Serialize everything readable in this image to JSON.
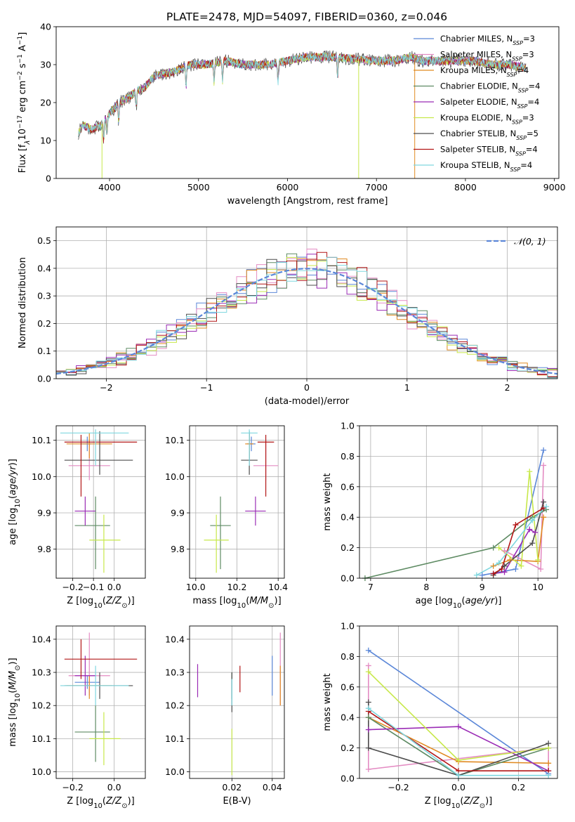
{
  "figure": {
    "title": "PLATE=2478, MJD=54097, FIBERID=0360, z=0.046"
  },
  "series_styles": [
    {
      "name": "Chabrier MILES",
      "legend_suffix": "3",
      "color": "#5b87d8"
    },
    {
      "name": "Salpeter MILES",
      "legend_suffix": "3",
      "color": "#e48cc3"
    },
    {
      "name": "Kroupa MILES",
      "legend_suffix": "4",
      "color": "#e08a22"
    },
    {
      "name": "Chabrier ELODIE",
      "legend_suffix": "4",
      "color": "#5e8b63"
    },
    {
      "name": "Salpeter ELODIE",
      "legend_suffix": "4",
      "color": "#9a2bb5"
    },
    {
      "name": "Kroupa ELODIE",
      "legend_suffix": "3",
      "color": "#c7e84a"
    },
    {
      "name": "Chabrier STELIB",
      "legend_suffix": "5",
      "color": "#4d4d4d"
    },
    {
      "name": "Salpeter STELIB",
      "legend_suffix": "4",
      "color": "#b21616"
    },
    {
      "name": "Kroupa STELIB",
      "legend_suffix": "4",
      "color": "#7fd7df"
    }
  ],
  "chart_data": [
    {
      "id": "spectrum",
      "type": "line",
      "title": "PLATE=2478, MJD=54097, FIBERID=0360, z=0.046",
      "xlabel": "wavelength [Angstrom, rest frame]",
      "ylabel": "Flux [f_λ10^{-17} erg cm^{-2} s^{-1} A^{-1}]",
      "xlim": [
        3400,
        9050
      ],
      "ylim": [
        0,
        40
      ],
      "xticks": [
        4000,
        5000,
        6000,
        7000,
        8000,
        9000
      ],
      "yticks": [
        0,
        10,
        20,
        30,
        40
      ],
      "legend_position": "right",
      "x_range": [
        3650,
        8680
      ],
      "continuum": {
        "x": [
          3650,
          3700,
          3800,
          3900,
          4000,
          4100,
          4200,
          4300,
          4400,
          4500,
          4700,
          4900,
          5100,
          5300,
          5500,
          5800,
          6000,
          6200,
          6500,
          7000,
          7200,
          7400,
          7500,
          7700,
          7900,
          8100,
          8300,
          8500,
          8680
        ],
        "y": [
          12,
          14,
          13,
          14,
          17,
          20,
          21,
          23,
          24,
          27,
          28,
          30,
          30,
          31,
          30,
          30,
          31,
          32,
          32,
          31,
          31,
          32,
          31,
          31,
          31,
          31,
          30,
          30,
          29
        ]
      },
      "absorption_lines_x": [
        3934,
        3969,
        4102,
        4300,
        4861,
        5175,
        5270,
        5893,
        6563
      ]
    },
    {
      "id": "residuals",
      "type": "line",
      "xlabel": "(data-model)/error",
      "ylabel": "Normed distribution",
      "xlim": [
        -2.5,
        2.5
      ],
      "ylim": [
        0,
        0.55
      ],
      "xticks": [
        -2,
        -1,
        0,
        1,
        2
      ],
      "yticks": [
        0.0,
        0.1,
        0.2,
        0.3,
        0.4,
        0.5
      ],
      "grid": true,
      "legend_position": "top-right",
      "gaussian_label": "𝒩(0, 1)",
      "gaussian_color": "#5b87d8",
      "bin_width": 0.1,
      "bin_start": -2.5
    },
    {
      "id": "age-vs-Z",
      "type": "scatter",
      "xlabel": "Z [log10(Z/Z⊙)]",
      "ylabel": "age [log10(age/yr)]",
      "xlim": [
        -0.28,
        0.15
      ],
      "ylim": [
        9.72,
        10.14
      ],
      "xticks": [
        -0.2,
        -0.1,
        0.0
      ],
      "yticks": [
        9.8,
        9.9,
        10.0,
        10.1
      ],
      "grid": true,
      "series": [
        {
          "x": -0.13,
          "y": 10.09,
          "xerr": [
            0.03,
            0.02
          ],
          "yerr": [
            0.02,
            0.02
          ]
        },
        {
          "x": -0.12,
          "y": 10.03,
          "xerr": [
            0.1,
            0.1
          ],
          "yerr": [
            0.04,
            0.07
          ]
        },
        {
          "x": -0.12,
          "y": 10.09,
          "xerr": [
            0.11,
            0.11
          ],
          "yerr": [
            0.04,
            0.03
          ]
        },
        {
          "x": -0.09,
          "y": 9.865,
          "xerr": [
            0.1,
            0.07
          ],
          "yerr": [
            0.12,
            0.08
          ]
        },
        {
          "x": -0.14,
          "y": 9.905,
          "xerr": [
            0.05,
            0.05
          ],
          "yerr": [
            0.04,
            0.04
          ]
        },
        {
          "x": -0.05,
          "y": 9.825,
          "xerr": [
            0.07,
            0.08
          ],
          "yerr": [
            0.09,
            0.07
          ]
        },
        {
          "x": -0.07,
          "y": 10.045,
          "xerr": [
            0.17,
            0.16
          ],
          "yerr": [
            0.04,
            0.08
          ]
        },
        {
          "x": -0.16,
          "y": 10.095,
          "xerr": [
            0.08,
            0.27
          ],
          "yerr": [
            0.15,
            0.02
          ]
        },
        {
          "x": -0.09,
          "y": 10.12,
          "xerr": [
            0.17,
            0.16
          ],
          "yerr": [
            0.09,
            0.01
          ]
        }
      ]
    },
    {
      "id": "age-vs-mass",
      "type": "scatter",
      "xlabel": "mass [log10(M/M⊙)]",
      "ylabel": "",
      "xlim": [
        9.97,
        10.43
      ],
      "ylim": [
        9.72,
        10.14
      ],
      "xticks": [
        10.0,
        10.2,
        10.4
      ],
      "yticks": [
        9.8,
        9.9,
        10.0,
        10.1
      ],
      "grid": true,
      "series": [
        {
          "x": 10.27,
          "y": 10.09,
          "xerr": [
            0.02,
            0.02
          ],
          "yerr": [
            0.02,
            0.02
          ]
        },
        {
          "x": 10.34,
          "y": 10.03,
          "xerr": [
            0.06,
            0.06
          ],
          "yerr": [
            0.04,
            0.07
          ]
        },
        {
          "x": 10.26,
          "y": 10.09,
          "xerr": [
            0.02,
            0.02
          ],
          "yerr": [
            0.04,
            0.03
          ]
        },
        {
          "x": 10.12,
          "y": 9.865,
          "xerr": [
            0.05,
            0.05
          ],
          "yerr": [
            0.12,
            0.08
          ]
        },
        {
          "x": 10.29,
          "y": 9.905,
          "xerr": [
            0.05,
            0.05
          ],
          "yerr": [
            0.04,
            0.04
          ]
        },
        {
          "x": 10.1,
          "y": 9.825,
          "xerr": [
            0.06,
            0.06
          ],
          "yerr": [
            0.09,
            0.07
          ]
        },
        {
          "x": 10.26,
          "y": 10.045,
          "xerr": [
            0.04,
            0.04
          ],
          "yerr": [
            0.04,
            0.08
          ]
        },
        {
          "x": 10.34,
          "y": 10.095,
          "xerr": [
            0.04,
            0.04
          ],
          "yerr": [
            0.15,
            0.02
          ]
        },
        {
          "x": 10.26,
          "y": 10.12,
          "xerr": [
            0.04,
            0.04
          ],
          "yerr": [
            0.09,
            0.01
          ]
        }
      ]
    },
    {
      "id": "mass-vs-Z",
      "type": "scatter",
      "xlabel": "Z [log10(Z/Z⊙)]",
      "ylabel": "mass [log10(M/M⊙)]",
      "xlim": [
        -0.28,
        0.15
      ],
      "ylim": [
        9.98,
        10.44
      ],
      "xticks": [
        -0.2,
        0.0
      ],
      "yticks": [
        10.0,
        10.1,
        10.2,
        10.3,
        10.4
      ],
      "grid": true,
      "series": [
        {
          "x": -0.13,
          "y": 10.27,
          "xerr": [
            0.06,
            0.06
          ],
          "yerr": [
            0.02,
            0.02
          ]
        },
        {
          "x": -0.12,
          "y": 10.29,
          "xerr": [
            0.1,
            0.1
          ],
          "yerr": [
            0.06,
            0.13
          ]
        },
        {
          "x": -0.12,
          "y": 10.26,
          "xerr": [
            0.11,
            0.11
          ],
          "yerr": [
            0.04,
            0.03
          ]
        },
        {
          "x": -0.09,
          "y": 10.12,
          "xerr": [
            0.1,
            0.07
          ],
          "yerr": [
            0.09,
            0.08
          ]
        },
        {
          "x": -0.14,
          "y": 10.29,
          "xerr": [
            0.05,
            0.05
          ],
          "yerr": [
            0.06,
            0.06
          ]
        },
        {
          "x": -0.05,
          "y": 10.1,
          "xerr": [
            0.07,
            0.08
          ],
          "yerr": [
            0.08,
            0.08
          ]
        },
        {
          "x": -0.07,
          "y": 10.26,
          "xerr": [
            0.17,
            0.16
          ],
          "yerr": [
            0.04,
            0.04
          ]
        },
        {
          "x": -0.16,
          "y": 10.34,
          "xerr": [
            0.08,
            0.27
          ],
          "yerr": [
            0.06,
            0.06
          ]
        },
        {
          "x": -0.09,
          "y": 10.26,
          "xerr": [
            0.17,
            0.16
          ],
          "yerr": [
            0.06,
            0.06
          ]
        }
      ]
    },
    {
      "id": "mass-vs-EBV",
      "type": "scatter",
      "xlabel": "E(B-V)",
      "ylabel": "",
      "xlim": [
        -0.001,
        0.046
      ],
      "ylim": [
        9.98,
        10.44
      ],
      "xticks": [
        0.02,
        0.04
      ],
      "yticks": [
        10.0,
        10.1,
        10.2,
        10.3,
        10.4
      ],
      "grid": true,
      "series": [
        {
          "x": 0.04,
          "y": 10.29,
          "yerr": [
            0.06,
            0.06
          ]
        },
        {
          "x": 0.044,
          "y": 10.31,
          "yerr": [
            0.11,
            0.11
          ]
        },
        {
          "x": 0.044,
          "y": 10.26,
          "yerr": [
            0.06,
            0.06
          ]
        },
        {
          "x": 0.02,
          "y": 10.26,
          "yerr": [
            0.04,
            0.04
          ]
        },
        {
          "x": 0.003,
          "y": 10.275,
          "yerr": [
            0.05,
            0.05
          ]
        },
        {
          "x": 0.02,
          "y": 10.06,
          "yerr": [
            0.07,
            0.07
          ]
        },
        {
          "x": 0.02,
          "y": 10.24,
          "yerr": [
            0.06,
            0.06
          ]
        },
        {
          "x": 0.024,
          "y": 10.28,
          "yerr": [
            0.04,
            0.04
          ]
        },
        {
          "x": 0.02,
          "y": 10.24,
          "yerr": [
            0.04,
            0.04
          ]
        }
      ]
    },
    {
      "id": "weight-vs-age",
      "type": "line",
      "xlabel": "age [log10(age/yr)]",
      "ylabel": "mass weight",
      "xlim": [
        6.8,
        10.35
      ],
      "ylim": [
        0,
        1.0
      ],
      "xticks": [
        7,
        8,
        9,
        10
      ],
      "yticks": [
        0.0,
        0.2,
        0.4,
        0.6,
        0.8,
        1.0
      ],
      "grid": true,
      "series": [
        {
          "x": [
            9.0,
            9.6,
            10.1
          ],
          "y": [
            0.02,
            0.06,
            0.84
          ]
        },
        {
          "x": [
            9.4,
            10.05,
            10.1
          ],
          "y": [
            0.18,
            0.06,
            0.74
          ]
        },
        {
          "x": [
            9.2,
            9.5,
            10.0,
            10.1
          ],
          "y": [
            0.08,
            0.12,
            0.11,
            0.4
          ]
        },
        {
          "x": [
            6.9,
            9.2,
            9.9,
            10.15
          ],
          "y": [
            0.0,
            0.2,
            0.4,
            0.45
          ]
        },
        {
          "x": [
            9.2,
            9.4,
            9.85,
            9.95
          ],
          "y": [
            0.03,
            0.04,
            0.32,
            0.3
          ]
        },
        {
          "x": [
            9.3,
            9.7,
            9.85,
            10.0
          ],
          "y": [
            0.2,
            0.08,
            0.7,
            0.12
          ]
        },
        {
          "x": [
            9.2,
            9.4,
            9.9,
            10.1
          ],
          "y": [
            0.02,
            0.08,
            0.23,
            0.5
          ]
        },
        {
          "x": [
            9.2,
            9.35,
            9.6,
            10.1
          ],
          "y": [
            0.03,
            0.06,
            0.35,
            0.46
          ]
        },
        {
          "x": [
            8.9,
            9.3,
            9.9,
            10.15
          ],
          "y": [
            0.02,
            0.1,
            0.38,
            0.47
          ]
        }
      ]
    },
    {
      "id": "weight-vs-Z",
      "type": "line",
      "xlabel": "Z [log10(Z/Z⊙)]",
      "ylabel": "mass weight",
      "xlim": [
        -0.33,
        0.33
      ],
      "ylim": [
        0,
        1.0
      ],
      "xticks": [
        -0.2,
        0.0,
        0.2
      ],
      "yticks": [
        0.0,
        0.2,
        0.4,
        0.6,
        0.8,
        1.0
      ],
      "grid": true,
      "series": [
        {
          "x": [
            -0.3,
            0.3
          ],
          "y": [
            0.84,
            0.03
          ]
        },
        {
          "x": [
            -0.3,
            -0.3,
            0.3,
            0.3
          ],
          "y": [
            0.74,
            0.06,
            0.2,
            0.05
          ]
        },
        {
          "x": [
            -0.3,
            0.0,
            0.3
          ],
          "y": [
            0.4,
            0.11,
            0.1
          ]
        },
        {
          "x": [
            -0.3,
            0.0,
            0.3
          ],
          "y": [
            0.4,
            0.02,
            0.2
          ]
        },
        {
          "x": [
            -0.3,
            0.0,
            0.3
          ],
          "y": [
            0.32,
            0.34,
            0.05
          ]
        },
        {
          "x": [
            -0.3,
            0.0,
            0.3
          ],
          "y": [
            0.7,
            0.12,
            0.2
          ]
        },
        {
          "x": [
            -0.3,
            -0.3,
            0.0,
            0.3
          ],
          "y": [
            0.5,
            0.2,
            0.02,
            0.23
          ]
        },
        {
          "x": [
            -0.3,
            0.0,
            0.3
          ],
          "y": [
            0.44,
            0.05,
            0.05
          ]
        },
        {
          "x": [
            -0.3,
            0.0,
            0.3
          ],
          "y": [
            0.46,
            0.02,
            0.02
          ]
        }
      ]
    }
  ]
}
